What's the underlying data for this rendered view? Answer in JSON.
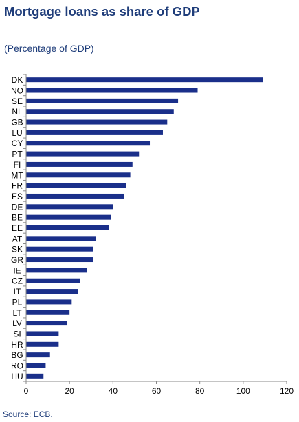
{
  "title": "Mortgage loans as share of GDP",
  "subtitle": "(Percentage of GDP)",
  "source": "Source: ECB.",
  "chart_data": {
    "type": "bar",
    "orientation": "horizontal",
    "categories": [
      "DK",
      "NO",
      "SE",
      "NL",
      "GB",
      "LU",
      "CY",
      "PT",
      "FI",
      "MT",
      "FR",
      "ES",
      "DE",
      "BE",
      "EE",
      "AT",
      "SK",
      "GR",
      "IE",
      "CZ",
      "IT",
      "PL",
      "LT",
      "LV",
      "SI",
      "HR",
      "BG",
      "RO",
      "HU"
    ],
    "values": [
      109,
      79,
      70,
      68,
      65,
      63,
      57,
      52,
      49,
      48,
      46,
      45,
      40,
      39,
      38,
      32,
      31,
      31,
      28,
      25,
      24,
      21,
      20,
      19,
      15,
      15,
      11,
      9,
      8
    ],
    "xlim": [
      0,
      120
    ],
    "xticks": [
      0,
      20,
      40,
      60,
      80,
      100,
      120
    ],
    "grid": false,
    "legend": "none",
    "bar_color": "#1a2f8a"
  }
}
